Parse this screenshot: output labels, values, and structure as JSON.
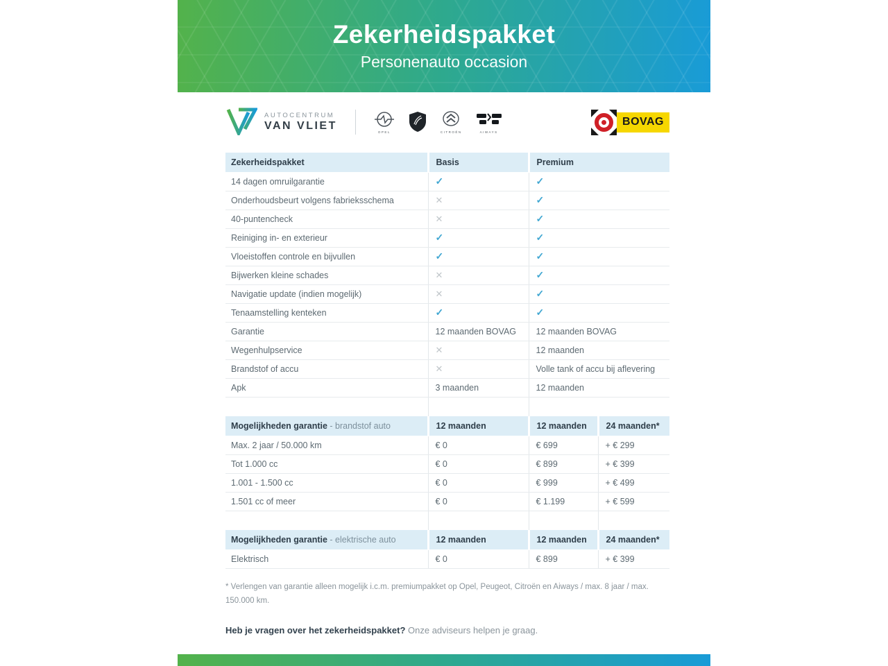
{
  "banner": {
    "title": "Zekerheidspakket",
    "subtitle": "Personenauto occasion"
  },
  "dealer": {
    "name_line1": "AUTOCENTRUM",
    "name_line2": "VAN VLIET"
  },
  "brands": {
    "opel": "OPEL",
    "citroen": "CITROËN",
    "aiways": "AIWAYS"
  },
  "bovag": {
    "label": "BOVAG"
  },
  "comparison_table": {
    "headers": [
      "Zekerheidspakket",
      "Basis",
      "Premium"
    ],
    "rows": [
      {
        "label": "14 dagen omruilgarantie",
        "basis": "check",
        "premium": "check"
      },
      {
        "label": "Onderhoudsbeurt volgens fabrieksschema",
        "basis": "cross",
        "premium": "check"
      },
      {
        "label": "40-puntencheck",
        "basis": "cross",
        "premium": "check"
      },
      {
        "label": "Reiniging in- en exterieur",
        "basis": "check",
        "premium": "check"
      },
      {
        "label": "Vloeistoffen controle en bijvullen",
        "basis": "check",
        "premium": "check"
      },
      {
        "label": "Bijwerken kleine schades",
        "basis": "cross",
        "premium": "check"
      },
      {
        "label": "Navigatie update (indien mogelijk)",
        "basis": "cross",
        "premium": "check"
      },
      {
        "label": "Tenaamstelling kenteken",
        "basis": "check",
        "premium": "check"
      },
      {
        "label": "Garantie",
        "basis": "12 maanden BOVAG",
        "premium": "12 maanden BOVAG"
      },
      {
        "label": "Wegenhulpservice",
        "basis": "cross",
        "premium": "12 maanden"
      },
      {
        "label": "Brandstof of accu",
        "basis": "cross",
        "premium": "Volle tank of accu bij aflevering"
      },
      {
        "label": "Apk",
        "basis": "3 maanden",
        "premium": "12 maanden"
      }
    ]
  },
  "fuel_table": {
    "title_bold": "Mogelijkheden garantie",
    "title_light": " - brandstof auto",
    "headers": [
      "12 maanden",
      "12 maanden",
      "24 maanden*"
    ],
    "rows": [
      {
        "label": "Max. 2 jaar / 50.000 km",
        "c1": "€ 0",
        "c2": "€ 699",
        "c3": "+ € 299"
      },
      {
        "label": "Tot 1.000 cc",
        "c1": "€ 0",
        "c2": "€ 899",
        "c3": "+ € 399"
      },
      {
        "label": "1.001 - 1.500 cc",
        "c1": "€ 0",
        "c2": "€ 999",
        "c3": "+ € 499"
      },
      {
        "label": "1.501 cc of meer",
        "c1": "€ 0",
        "c2": "€ 1.199",
        "c3": "+ € 599"
      }
    ]
  },
  "electric_table": {
    "title_bold": "Mogelijkheden garantie",
    "title_light": " - elektrische auto",
    "headers": [
      "12 maanden",
      "12 maanden",
      "24 maanden*"
    ],
    "rows": [
      {
        "label": "Elektrisch",
        "c1": "€ 0",
        "c2": "€ 899",
        "c3": "+ € 399"
      }
    ]
  },
  "footnote": "* Verlengen van garantie alleen mogelijk i.c.m. premiumpakket op Opel, Peugeot, Citroën en Aiways / max. 8 jaar / max. 150.000 km.",
  "question": {
    "bold": "Heb je vragen over het zekerheidspakket?",
    "light": "Onze adviseurs helpen je graag."
  },
  "colors": {
    "gradient_start": "#53b24b",
    "gradient_end": "#199bd7",
    "table_header_bg": "#dcedf6",
    "check": "#41a7d2",
    "cross": "#c0c6ca",
    "bovag_yellow": "#f6d700",
    "bovag_red": "#cf2027"
  }
}
